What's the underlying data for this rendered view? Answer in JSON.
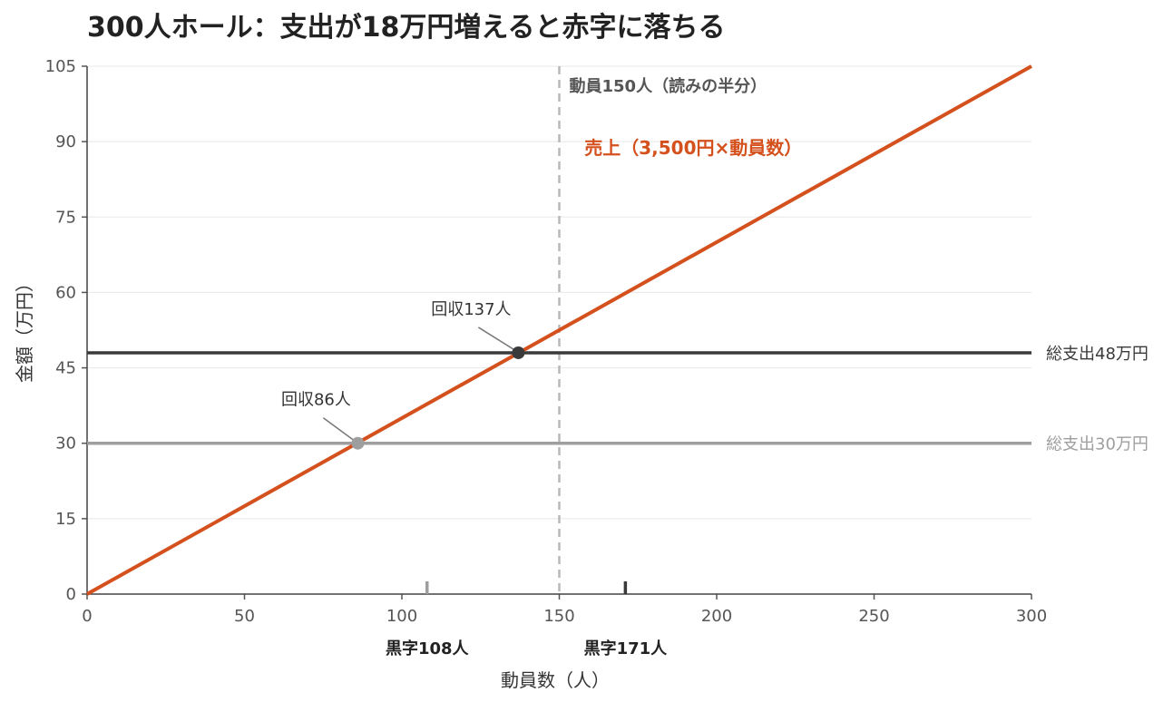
{
  "chart_data": {
    "type": "line",
    "title": "300人ホール：支出が18万円増えると赤字に落ちる",
    "xlabel": "動員数（人）",
    "ylabel": "金額（万円）",
    "xlim": [
      0,
      300
    ],
    "ylim": [
      0,
      105
    ],
    "xticks": [
      0,
      50,
      100,
      150,
      200,
      250,
      300
    ],
    "yticks": [
      0,
      15,
      30,
      45,
      60,
      75,
      90,
      105
    ],
    "grid": true,
    "series": [
      {
        "name": "売上（3,500円×動員数）",
        "x": [
          0,
          300
        ],
        "y": [
          0,
          105
        ],
        "color": "#d4511e"
      },
      {
        "name": "総支出48万円",
        "x": [
          0,
          300
        ],
        "y": [
          48,
          48
        ],
        "color": "#3a3a3a"
      },
      {
        "name": "総支出30万円",
        "x": [
          0,
          300
        ],
        "y": [
          30,
          30
        ],
        "color": "#9e9e9e"
      }
    ],
    "breakeven_points": [
      {
        "label": "回収86人",
        "x": 86,
        "y": 30,
        "color": "#9e9e9e"
      },
      {
        "label": "回収137人",
        "x": 137,
        "y": 48,
        "color": "#3a3a3a"
      }
    ],
    "reference_line": {
      "label": "動員150人（読みの半分）",
      "x": 150
    },
    "profit_markers": [
      {
        "label": "黒字108人",
        "x": 108,
        "color": "#9e9e9e"
      },
      {
        "label": "黒字171人",
        "x": 171,
        "color": "#3a3a3a"
      }
    ],
    "plot_background": "#ffffff",
    "grid_color": "#e8e8e8"
  }
}
